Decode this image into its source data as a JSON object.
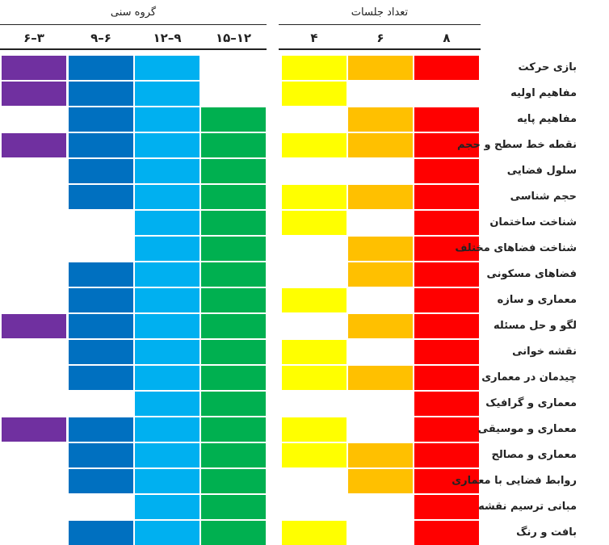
{
  "headers": {
    "age_group": "گروه سنی",
    "sessions": "تعداد جلسات"
  },
  "age_columns": [
    "۳–۶",
    "۶–۹",
    "۹–۱۲",
    "۱۲–۱۵"
  ],
  "session_columns": [
    "۴",
    "۶",
    "۸"
  ],
  "colors": {
    "age_3_6": "#7030a0",
    "age_6_9": "#0070c0",
    "age_9_12": "#00b0f0",
    "age_12_15": "#00b050",
    "sessions_4": "#ffff00",
    "sessions_6": "#ffc000",
    "sessions_8": "#ff0000"
  },
  "rows": [
    {
      "label": "بازی حرکت",
      "age": [
        1,
        1,
        1,
        0
      ],
      "sessions": [
        1,
        1,
        1
      ]
    },
    {
      "label": "مفاهیم اولیه",
      "age": [
        1,
        1,
        1,
        0
      ],
      "sessions": [
        1,
        0,
        0
      ]
    },
    {
      "label": "مفاهیم پایه",
      "age": [
        0,
        1,
        1,
        1
      ],
      "sessions": [
        0,
        1,
        1
      ]
    },
    {
      "label": "نقطه خط سطح و حجم",
      "age": [
        1,
        1,
        1,
        1
      ],
      "sessions": [
        1,
        1,
        1
      ]
    },
    {
      "label": "سلول فضایی",
      "age": [
        0,
        1,
        1,
        1
      ],
      "sessions": [
        0,
        0,
        1
      ]
    },
    {
      "label": "حجم شناسی",
      "age": [
        0,
        1,
        1,
        1
      ],
      "sessions": [
        1,
        1,
        1
      ]
    },
    {
      "label": "شناخت ساختمان",
      "age": [
        0,
        0,
        1,
        1
      ],
      "sessions": [
        1,
        0,
        1
      ]
    },
    {
      "label": "شناخت فضاهای مختلف",
      "age": [
        0,
        0,
        1,
        1
      ],
      "sessions": [
        0,
        1,
        1
      ]
    },
    {
      "label": "فضاهای مسکونی",
      "age": [
        0,
        1,
        1,
        1
      ],
      "sessions": [
        0,
        1,
        1
      ]
    },
    {
      "label": "معماری و سازه",
      "age": [
        0,
        1,
        1,
        1
      ],
      "sessions": [
        1,
        0,
        1
      ]
    },
    {
      "label": "لگو و حل مسئله",
      "age": [
        1,
        1,
        1,
        1
      ],
      "sessions": [
        0,
        1,
        1
      ]
    },
    {
      "label": "نقشه خوانی",
      "age": [
        0,
        1,
        1,
        1
      ],
      "sessions": [
        1,
        0,
        1
      ]
    },
    {
      "label": "چیدمان در معماری",
      "age": [
        0,
        1,
        1,
        1
      ],
      "sessions": [
        1,
        1,
        1
      ]
    },
    {
      "label": "معماری و گرافیک",
      "age": [
        0,
        0,
        1,
        1
      ],
      "sessions": [
        0,
        0,
        1
      ]
    },
    {
      "label": "معماری و موسیقی",
      "age": [
        1,
        1,
        1,
        1
      ],
      "sessions": [
        1,
        0,
        1
      ]
    },
    {
      "label": "معماری و مصالح",
      "age": [
        0,
        1,
        1,
        1
      ],
      "sessions": [
        1,
        1,
        1
      ]
    },
    {
      "label": "روابط فضایی با معماری",
      "age": [
        0,
        1,
        1,
        1
      ],
      "sessions": [
        0,
        1,
        1
      ]
    },
    {
      "label": "مبانی ترسیم نقشه",
      "age": [
        0,
        0,
        1,
        1
      ],
      "sessions": [
        0,
        0,
        1
      ]
    },
    {
      "label": "بافت و رنگ",
      "age": [
        0,
        1,
        1,
        1
      ],
      "sessions": [
        1,
        0,
        1
      ]
    }
  ]
}
